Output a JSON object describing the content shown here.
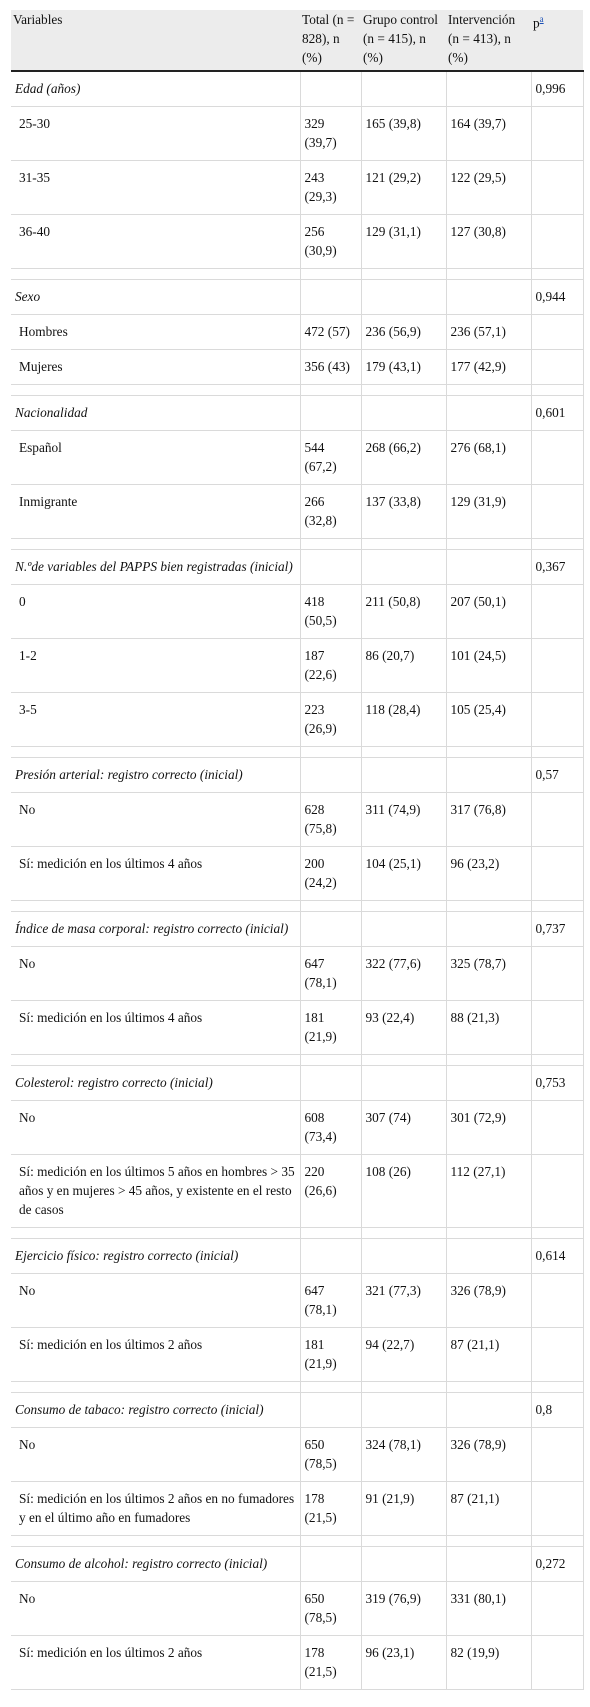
{
  "headers": {
    "variables": "Variables",
    "total": "Total (n = 828), n (%)",
    "control": "Grupo control (n = 415), n (%)",
    "intervention": "Intervención (n = 413), n (%)",
    "p": "p",
    "p_sup": "a"
  },
  "groups": [
    {
      "label": "Edad (años)",
      "p": "0,996",
      "rows": [
        {
          "label": "25-30",
          "total": "329 (39,7)",
          "control": "165 (39,8)",
          "intervention": "164 (39,7)"
        },
        {
          "label": "31-35",
          "total": "243 (29,3)",
          "control": "121 (29,2)",
          "intervention": "122 (29,5)"
        },
        {
          "label": "36-40",
          "total": "256 (30,9)",
          "control": "129 (31,1)",
          "intervention": "127 (30,8)"
        }
      ]
    },
    {
      "label": "Sexo",
      "p": "0,944",
      "rows": [
        {
          "label": "Hombres",
          "total": "472 (57)",
          "control": "236 (56,9)",
          "intervention": "236 (57,1)"
        },
        {
          "label": "Mujeres",
          "total": "356 (43)",
          "control": "179 (43,1)",
          "intervention": "177 (42,9)"
        }
      ]
    },
    {
      "label": "Nacionalidad",
      "p": "0,601",
      "rows": [
        {
          "label": "Español",
          "total": "544 (67,2)",
          "control": "268 (66,2)",
          "intervention": "276 (68,1)"
        },
        {
          "label": "Inmigrante",
          "total": "266 (32,8)",
          "control": "137 (33,8)",
          "intervention": "129 (31,9)"
        }
      ]
    },
    {
      "label": "N.ºde variables del PAPPS bien registradas (inicial)",
      "p": "0,367",
      "rows": [
        {
          "label": "0",
          "total": "418 (50,5)",
          "control": "211 (50,8)",
          "intervention": "207 (50,1)"
        },
        {
          "label": "1-2",
          "total": "187 (22,6)",
          "control": "86 (20,7)",
          "intervention": "101 (24,5)"
        },
        {
          "label": "3-5",
          "total": "223 (26,9)",
          "control": "118 (28,4)",
          "intervention": "105 (25,4)"
        }
      ]
    },
    {
      "label": "Presión arterial: registro correcto (inicial)",
      "p": "0,57",
      "rows": [
        {
          "label": "No",
          "total": "628 (75,8)",
          "control": "311 (74,9)",
          "intervention": "317 (76,8)"
        },
        {
          "label": "Sí: medición en los últimos 4 años",
          "total": "200 (24,2)",
          "control": "104 (25,1)",
          "intervention": "96 (23,2)"
        }
      ]
    },
    {
      "label": "Índice de masa corporal: registro correcto (inicial)",
      "p": "0,737",
      "rows": [
        {
          "label": "No",
          "total": "647 (78,1)",
          "control": "322 (77,6)",
          "intervention": "325 (78,7)"
        },
        {
          "label": "Sí: medición en los últimos 4 años",
          "total": "181 (21,9)",
          "control": "93 (22,4)",
          "intervention": "88 (21,3)"
        }
      ]
    },
    {
      "label": "Colesterol: registro correcto (inicial)",
      "p": "0,753",
      "rows": [
        {
          "label": "No",
          "total": "608 (73,4)",
          "control": "307 (74)",
          "intervention": "301 (72,9)"
        },
        {
          "label": "Sí: medición en los últimos 5 años en hombres > 35 años y en mujeres > 45 años, y existente en el resto de casos",
          "total": "220 (26,6)",
          "control": "108 (26)",
          "intervention": "112 (27,1)"
        }
      ]
    },
    {
      "label": "Ejercicio físico: registro correcto (inicial)",
      "p": "0,614",
      "rows": [
        {
          "label": "No",
          "total": "647 (78,1)",
          "control": "321 (77,3)",
          "intervention": "326 (78,9)"
        },
        {
          "label": "Sí: medición en los últimos 2 años",
          "total": "181 (21,9)",
          "control": "94 (22,7)",
          "intervention": "87 (21,1)"
        }
      ]
    },
    {
      "label": "Consumo de tabaco: registro correcto (inicial)",
      "p": "0,8",
      "rows": [
        {
          "label": "No",
          "total": "650 (78,5)",
          "control": "324 (78,1)",
          "intervention": "326 (78,9)"
        },
        {
          "label": "Sí: medición en los últimos 2 años en no fumadores y en el último año en fumadores",
          "total": "178 (21,5)",
          "control": "91 (21,9)",
          "intervention": "87 (21,1)"
        }
      ]
    },
    {
      "label": "Consumo de alcohol: registro correcto (inicial)",
      "p": "0,272",
      "rows": [
        {
          "label": "No",
          "total": "650 (78,5)",
          "control": "319 (76,9)",
          "intervention": "331 (80,1)"
        },
        {
          "label": "Sí: medición en los últimos 2 años",
          "total": "178 (21,5)",
          "control": "96 (23,1)",
          "intervention": "82 (19,9)"
        }
      ]
    }
  ]
}
